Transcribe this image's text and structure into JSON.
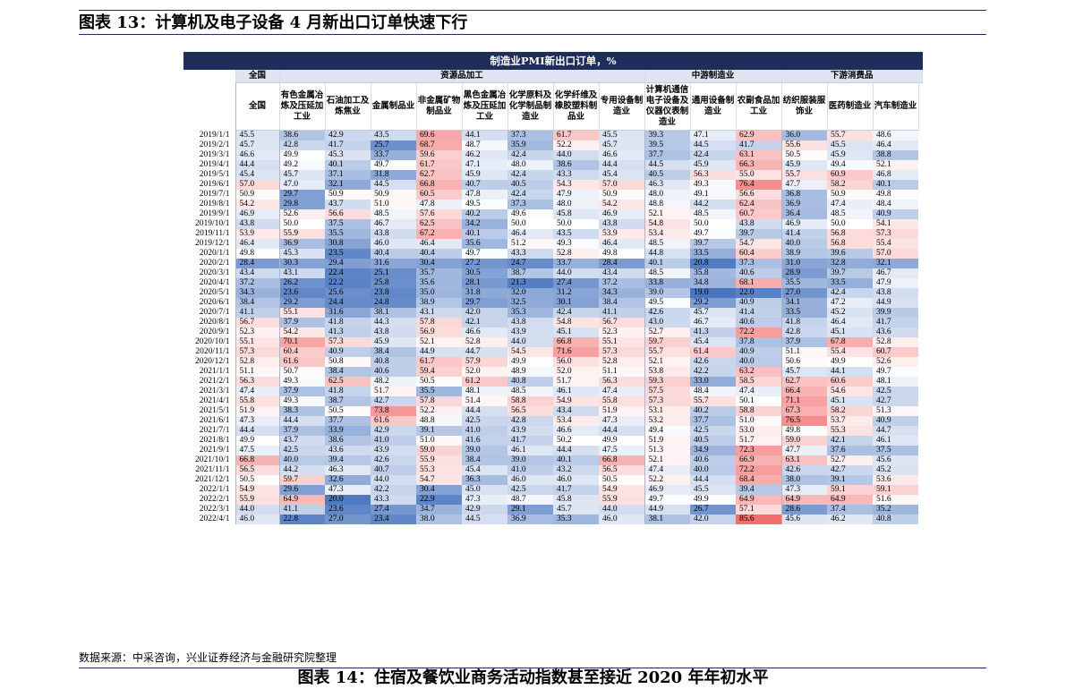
{
  "figure_title": "图表 13：计算机及电子设备 4 月新出口订单快速下行",
  "source": "数据来源：中采咨询，兴业证券经济与金融研究院整理",
  "next_figure_title": "图表 14：住宿及餐饮业商务活动指数甚至接近 2020 年年初水平",
  "chart_data": {
    "type": "heatmap",
    "title": "制造业PMI新出口订单，%",
    "groups": [
      {
        "label": "全国",
        "span": 1
      },
      {
        "label": "资源品加工",
        "span": 8
      },
      {
        "label": "中游制造业",
        "span": 3
      },
      {
        "label": "下游消费品",
        "span": 4
      }
    ],
    "columns": [
      "全国",
      "有色金属冶炼及压延加工业",
      "石油加工及炼焦业",
      "金属制品业",
      "非金属矿物制品业",
      "黑色金属冶炼及压延加工业",
      "化学原料及化学制品制造业",
      "化学纤维及橡胶塑料制品业",
      "专用设备制造业",
      "计算机通信电子设备及仪器仪表制造业",
      "通用设备制造业",
      "农副食品加工业",
      "纺织服装服饰业",
      "医药制造业",
      "汽车制造业"
    ],
    "rows": [
      "2019/1/1",
      "2019/2/1",
      "2019/3/1",
      "2019/4/1",
      "2019/5/1",
      "2019/6/1",
      "2019/7/1",
      "2019/8/1",
      "2019/9/1",
      "2019/10/1",
      "2019/11/1",
      "2019/12/1",
      "2020/1/1",
      "2020/2/1",
      "2020/3/1",
      "2020/4/1",
      "2020/5/1",
      "2020/6/1",
      "2020/7/1",
      "2020/8/1",
      "2020/9/1",
      "2020/10/1",
      "2020/11/1",
      "2020/12/1",
      "2021/1/1",
      "2021/2/1",
      "2021/3/1",
      "2021/4/1",
      "2021/5/1",
      "2021/6/1",
      "2021/7/1",
      "2021/8/1",
      "2021/9/1",
      "2021/10/1",
      "2021/11/1",
      "2021/12/1",
      "2022/1/1",
      "2022/2/1",
      "2022/3/1",
      "2022/4/1"
    ],
    "values": [
      [
        45.5,
        38.6,
        42.9,
        43.5,
        69.6,
        44.1,
        37.3,
        61.7,
        45.5,
        39.3,
        47.1,
        62.9,
        36.0,
        55.7,
        48.6
      ],
      [
        45.7,
        42.8,
        41.7,
        25.7,
        68.7,
        48.7,
        35.9,
        52.2,
        45.7,
        39.5,
        44.5,
        41.7,
        55.6,
        45.5,
        46.4
      ],
      [
        46.6,
        49.9,
        45.3,
        33.7,
        59.6,
        46.2,
        42.4,
        44.0,
        46.6,
        37.7,
        42.4,
        63.1,
        50.5,
        45.9,
        38.8
      ],
      [
        44.4,
        49.2,
        40.1,
        49.7,
        61.7,
        47.1,
        48.0,
        38.6,
        44.4,
        44.5,
        45.9,
        66.3,
        45.9,
        49.4,
        52.1
      ],
      [
        45.4,
        45.7,
        37.1,
        31.8,
        62.7,
        45.9,
        42.4,
        43.3,
        45.4,
        40.5,
        56.3,
        55.0,
        55.7,
        60.9,
        46.8
      ],
      [
        57.0,
        47.0,
        32.1,
        44.5,
        66.8,
        40.7,
        40.5,
        54.3,
        57.0,
        46.3,
        49.3,
        76.4,
        47.7,
        58.2,
        40.1
      ],
      [
        50.9,
        29.7,
        50.9,
        50.9,
        60.5,
        47.8,
        42.4,
        47.9,
        50.9,
        48.0,
        49.1,
        56.6,
        36.8,
        50.9,
        49.8
      ],
      [
        54.2,
        29.8,
        43.7,
        51.0,
        47.8,
        49.5,
        37.3,
        48.0,
        54.2,
        48.8,
        44.2,
        62.4,
        36.9,
        47.4,
        48.4
      ],
      [
        46.9,
        52.6,
        56.6,
        48.5,
        57.6,
        40.2,
        49.6,
        45.8,
        46.9,
        52.1,
        48.5,
        60.7,
        36.4,
        48.5,
        40.9
      ],
      [
        43.8,
        50.0,
        37.5,
        46.7,
        62.5,
        34.2,
        50.0,
        50.0,
        43.8,
        54.8,
        50.0,
        43.8,
        46.9,
        50.0,
        54.1
      ],
      [
        53.9,
        55.9,
        35.5,
        43.8,
        67.2,
        40.1,
        46.4,
        43.5,
        53.9,
        53.4,
        49.7,
        39.7,
        41.4,
        56.8,
        57.3
      ],
      [
        46.4,
        36.9,
        30.8,
        46.0,
        46.4,
        35.6,
        51.2,
        49.3,
        46.4,
        48.5,
        39.7,
        54.7,
        40.0,
        56.8,
        55.4
      ],
      [
        49.8,
        45.3,
        23.5,
        40.4,
        40.4,
        49.7,
        43.3,
        52.8,
        49.8,
        44.8,
        33.5,
        60.4,
        38.9,
        39.6,
        57.0
      ],
      [
        28.4,
        30.3,
        29.4,
        31.6,
        30.4,
        27.2,
        24.7,
        33.7,
        28.4,
        40.1,
        20.8,
        37.3,
        31.0,
        32.8,
        32.1
      ],
      [
        43.4,
        43.1,
        22.4,
        25.1,
        35.7,
        30.5,
        38.7,
        44.0,
        43.4,
        48.5,
        35.8,
        40.6,
        28.9,
        39.7,
        46.7
      ],
      [
        37.2,
        26.2,
        22.2,
        25.8,
        35.6,
        28.1,
        21.3,
        27.4,
        37.2,
        33.8,
        34.8,
        68.1,
        35.5,
        33.5,
        47.9
      ],
      [
        34.3,
        23.6,
        25.6,
        23.8,
        35.0,
        31.8,
        32.0,
        31.2,
        34.3,
        39.0,
        19.0,
        22.0,
        27.0,
        42.4,
        43.8
      ],
      [
        38.4,
        29.2,
        24.4,
        24.8,
        38.9,
        29.7,
        32.5,
        30.1,
        38.4,
        49.5,
        29.2,
        40.9,
        34.1,
        47.2,
        44.9
      ],
      [
        41.1,
        55.1,
        31.6,
        38.1,
        43.1,
        42.0,
        35.3,
        42.4,
        41.1,
        42.6,
        45.7,
        41.4,
        33.5,
        45.2,
        39.9
      ],
      [
        56.7,
        37.9,
        41.8,
        44.3,
        57.8,
        42.1,
        43.8,
        54.8,
        56.7,
        43.0,
        46.7,
        40.6,
        41.8,
        46.4,
        41.7
      ],
      [
        52.3,
        54.2,
        41.3,
        43.8,
        56.9,
        46.6,
        43.9,
        45.1,
        52.3,
        52.7,
        41.3,
        72.2,
        42.8,
        45.1,
        43.6
      ],
      [
        55.1,
        70.1,
        57.3,
        45.9,
        52.1,
        52.8,
        44.0,
        66.8,
        55.1,
        59.7,
        45.4,
        37.8,
        37.9,
        67.8,
        52.8
      ],
      [
        57.3,
        60.4,
        40.9,
        38.4,
        44.9,
        44.7,
        54.5,
        71.6,
        57.3,
        55.7,
        61.4,
        40.9,
        51.1,
        55.4,
        60.7
      ],
      [
        52.8,
        61.6,
        50.8,
        40.8,
        61.7,
        57.9,
        49.9,
        56.0,
        52.8,
        52.1,
        42.6,
        40.0,
        50.6,
        49.9,
        52.6
      ],
      [
        51.1,
        50.7,
        38.4,
        40.6,
        59.4,
        52.0,
        48.9,
        52.0,
        51.1,
        53.8,
        42.2,
        63.2,
        45.7,
        44.1,
        49.7
      ],
      [
        56.3,
        49.3,
        62.5,
        48.2,
        50.5,
        61.2,
        40.8,
        51.7,
        56.3,
        59.3,
        33.0,
        58.5,
        62.7,
        60.6,
        48.1
      ],
      [
        47.4,
        37.9,
        41.8,
        51.7,
        35.5,
        48.1,
        48.5,
        46.1,
        47.4,
        57.5,
        48.4,
        47.4,
        66.4,
        54.6,
        42.5
      ],
      [
        55.8,
        49.3,
        38.7,
        42.7,
        57.8,
        51.4,
        58.8,
        54.9,
        55.8,
        57.3,
        55.7,
        50.1,
        71.1,
        45.1,
        42.7
      ],
      [
        51.9,
        38.3,
        50.5,
        73.8,
        52.2,
        44.4,
        56.5,
        43.4,
        51.9,
        53.1,
        40.2,
        58.8,
        67.3,
        58.2,
        51.3
      ],
      [
        47.3,
        44.4,
        37.7,
        61.6,
        48.8,
        42.5,
        42.8,
        53.4,
        47.3,
        53.2,
        37.7,
        51.0,
        76.5,
        53.7,
        40.9
      ],
      [
        44.4,
        37.9,
        33.9,
        42.9,
        39.1,
        41.0,
        43.9,
        46.6,
        44.4,
        49.4,
        42.5,
        53.0,
        49.8,
        55.3,
        44.7
      ],
      [
        49.9,
        43.7,
        38.6,
        41.0,
        51.0,
        41.6,
        41.7,
        50.2,
        49.9,
        51.9,
        40.5,
        51.7,
        59.0,
        42.1,
        46.1
      ],
      [
        47.5,
        42.5,
        43.6,
        43.9,
        59.0,
        39.0,
        46.1,
        44.4,
        47.5,
        51.3,
        34.9,
        72.3,
        47.7,
        37.6,
        37.5
      ],
      [
        66.8,
        40.0,
        39.4,
        42.6,
        55.9,
        38.4,
        39.0,
        40.1,
        66.8,
        52.1,
        40.6,
        66.9,
        63.1,
        52.7,
        45.6
      ],
      [
        56.5,
        44.2,
        46.3,
        40.7,
        55.3,
        45.4,
        41.0,
        43.2,
        56.5,
        47.4,
        40.0,
        72.2,
        42.6,
        42.7,
        45.2
      ],
      [
        50.5,
        59.7,
        32.6,
        44.0,
        54.7,
        36.3,
        46.0,
        46.0,
        50.5,
        52.2,
        44.4,
        68.4,
        38.0,
        39.1,
        53.6
      ],
      [
        54.9,
        29.6,
        47.3,
        42.2,
        30.4,
        45.0,
        42.5,
        41.7,
        54.9,
        46.9,
        45.5,
        39.4,
        47.3,
        59.1,
        59.1
      ],
      [
        55.9,
        64.9,
        20.0,
        43.3,
        22.9,
        47.3,
        48.7,
        45.8,
        55.9,
        49.7,
        49.9,
        64.9,
        64.9,
        64.9,
        51.6
      ],
      [
        44.0,
        41.1,
        23.6,
        27.4,
        34.7,
        42.9,
        29.1,
        45.7,
        44.0,
        44.9,
        26.7,
        57.1,
        28.6,
        37.4,
        35.2
      ],
      [
        46.0,
        22.8,
        27.0,
        23.4,
        38.0,
        44.5,
        36.9,
        35.3,
        46.0,
        38.1,
        42.0,
        85.6,
        45.6,
        46.2,
        40.8
      ]
    ],
    "color_scale": {
      "low": "#4a76c0",
      "mid": "#ffffff",
      "high": "#f26d6d",
      "center_value": 50
    }
  }
}
